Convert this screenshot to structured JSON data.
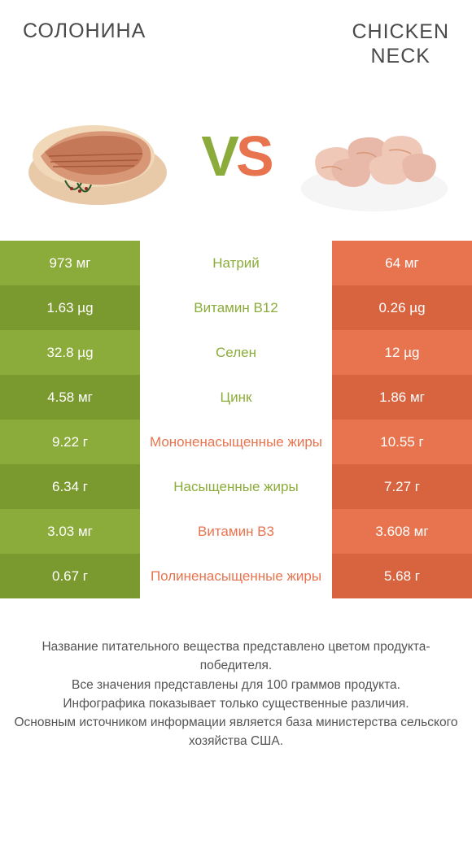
{
  "header": {
    "left_title": "Солонина",
    "right_title_line1": "CHICKEN",
    "right_title_line2": "NECK"
  },
  "vs": {
    "v": "V",
    "s": "S"
  },
  "colors": {
    "green": "#8bac3a",
    "green_dark": "#7a9a2f",
    "orange": "#e8744f",
    "orange_dark": "#d8633f"
  },
  "rows": [
    {
      "left": "973 мг",
      "label": "Натрий",
      "right": "64 мг",
      "winner": "green"
    },
    {
      "left": "1.63 µg",
      "label": "Витамин B12",
      "right": "0.26 µg",
      "winner": "green"
    },
    {
      "left": "32.8 µg",
      "label": "Селен",
      "right": "12 µg",
      "winner": "green"
    },
    {
      "left": "4.58 мг",
      "label": "Цинк",
      "right": "1.86 мг",
      "winner": "green"
    },
    {
      "left": "9.22 г",
      "label": "Мононенасыщенные жиры",
      "right": "10.55 г",
      "winner": "orange"
    },
    {
      "left": "6.34 г",
      "label": "Насыщенные жиры",
      "right": "7.27 г",
      "winner": "green"
    },
    {
      "left": "3.03 мг",
      "label": "Витамин B3",
      "right": "3.608 мг",
      "winner": "orange"
    },
    {
      "left": "0.67 г",
      "label": "Полиненасыщенные жиры",
      "right": "5.68 г",
      "winner": "orange"
    }
  ],
  "footer": {
    "line1": "Название питательного вещества представлено цветом продукта-победителя.",
    "line2": "Все значения представлены для 100 граммов продукта.",
    "line3": "Инфографика показывает только существенные различия.",
    "line4": "Основным источником информации является база министерства сельского хозяйства США."
  }
}
